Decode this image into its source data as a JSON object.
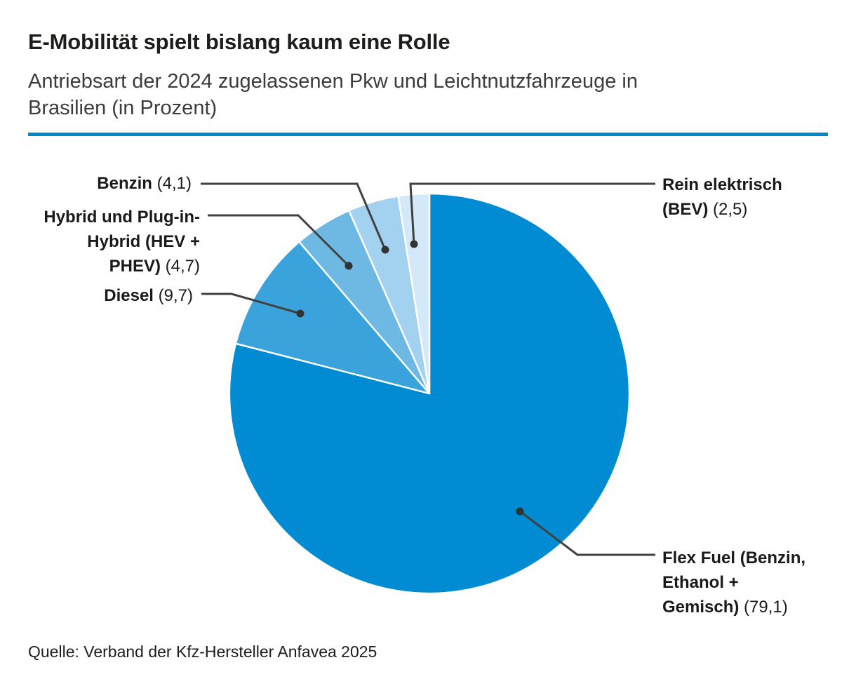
{
  "page": {
    "title": "E-Mobilität spielt bislang kaum eine Rolle",
    "subtitle": "Antriebsart der 2024 zugelassenen Pkw und Leichtnutzfahrzeuge in Brasilien (in Prozent)",
    "source": "Quelle: Verband der Kfz-Hersteller Anfavea 2025",
    "accent_color": "#0088cc"
  },
  "chart_data": {
    "type": "pie",
    "title": "Antriebsart der 2024 zugelassenen Pkw und Leichtnutzfahrzeuge in Brasilien (in Prozent)",
    "unit": "Prozent",
    "start_angle_deg_from_top": 0,
    "direction": "clockwise",
    "legend_position": "callout-labels",
    "leader_line_color": "#414141",
    "leader_dot_color": "#333333",
    "segments": [
      {
        "id": "flex-fuel",
        "label": "Flex Fuel (Benzin, Ethanol + Gemisch)",
        "value": 79.1,
        "value_display": "(79,1)",
        "color": "#008bd2"
      },
      {
        "id": "diesel",
        "label": "Diesel",
        "value": 9.7,
        "value_display": "(9,7)",
        "color": "#3ba3dc"
      },
      {
        "id": "hybrid",
        "label": "Hybrid und Plug-in-Hybrid (HEV + PHEV)",
        "value": 4.7,
        "value_display": "(4,7)",
        "color": "#6db9e4"
      },
      {
        "id": "benzin",
        "label": "Benzin",
        "value": 4.1,
        "value_display": "(4,1)",
        "color": "#a2d2ef"
      },
      {
        "id": "bev",
        "label": "Rein elektrisch (BEV)",
        "value": 2.5,
        "value_display": "(2,5)",
        "color": "#d3e8f8"
      }
    ]
  }
}
